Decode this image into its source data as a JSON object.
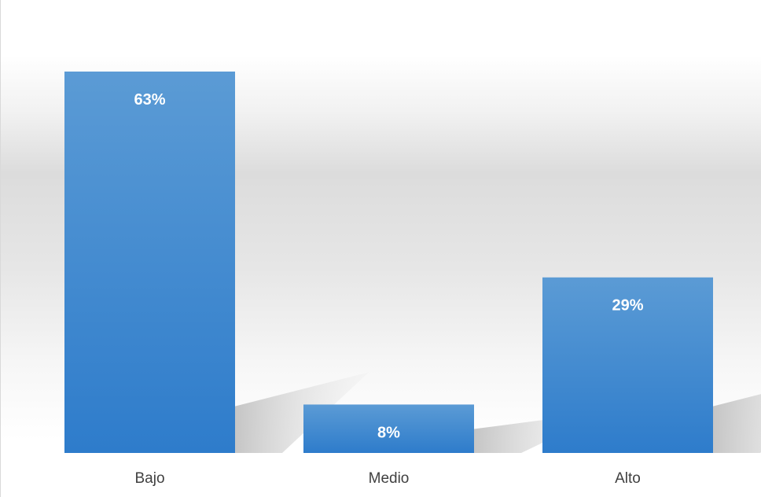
{
  "chart_data": {
    "type": "bar",
    "categories": [
      "Bajo",
      "Medio",
      "Alto"
    ],
    "values": [
      63,
      8,
      29
    ],
    "data_labels": [
      "63%",
      "8%",
      "29%"
    ],
    "title": "",
    "xlabel": "",
    "ylabel": "",
    "ylim": [
      0,
      63
    ],
    "grid": false,
    "legend": "none",
    "colors": {
      "bar_top": "#5b9bd5",
      "bar_bottom": "#2e7ccb",
      "label_text": "#ffffff",
      "category_text": "#404040"
    }
  }
}
